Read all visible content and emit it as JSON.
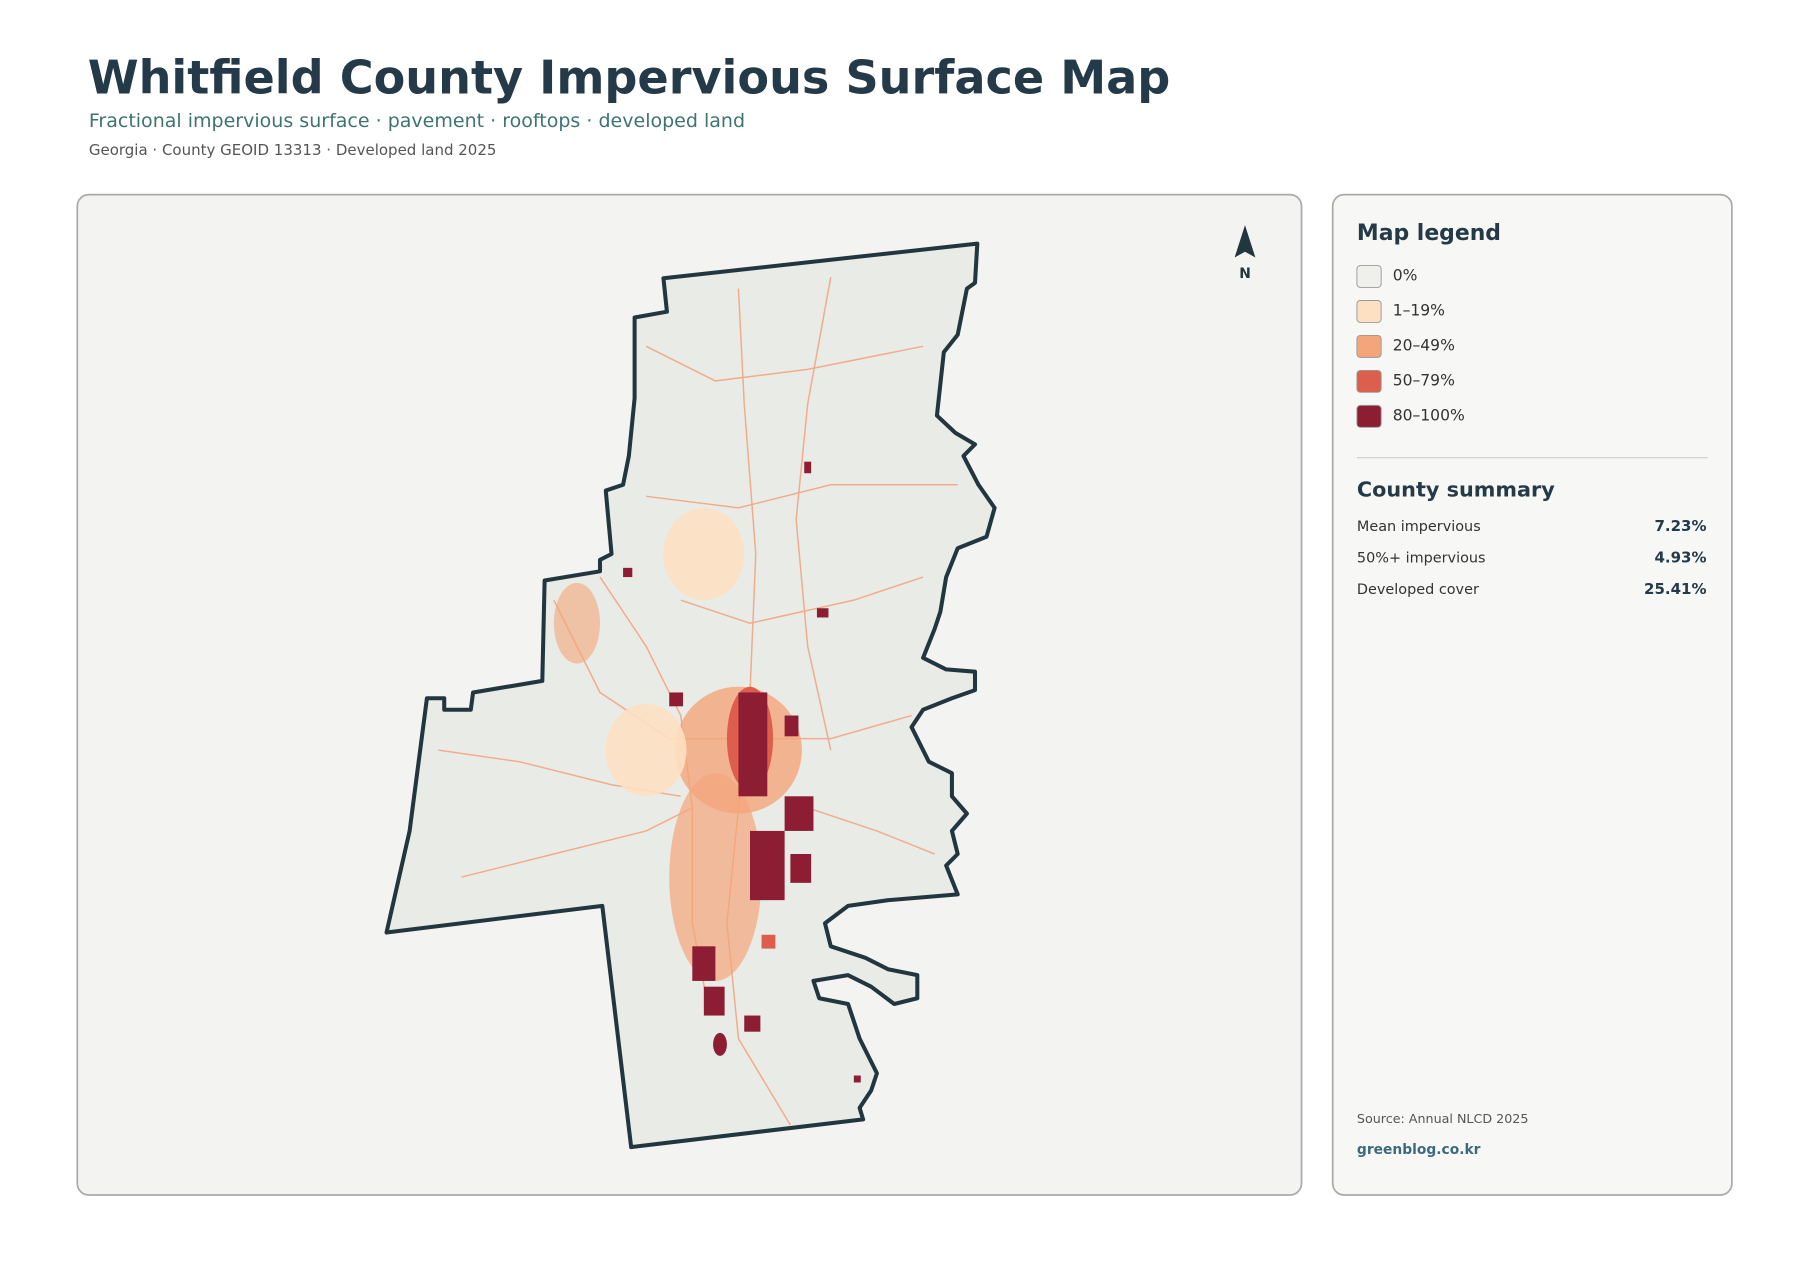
{
  "header": {
    "title": "Whitfield County Impervious Surface Map",
    "subtitle": "Fractional impervious surface · pavement · rooftops · developed land",
    "meta": "Georgia · County GEOID 13313 · Developed land 2025"
  },
  "map": {
    "north_label": "N"
  },
  "legend": {
    "title": "Map legend",
    "items": [
      {
        "label": "0%",
        "color": "#efefec"
      },
      {
        "label": "1–19%",
        "color": "#fde0c1"
      },
      {
        "label": "20–49%",
        "color": "#f4a57a"
      },
      {
        "label": "50–79%",
        "color": "#dd5e4d"
      },
      {
        "label": "80–100%",
        "color": "#8c1d33"
      }
    ]
  },
  "summary": {
    "title": "County summary",
    "rows": [
      [
        "Mean impervious",
        "7.23%"
      ],
      [
        "50%+ impervious",
        "4.93%"
      ],
      [
        "Developed cover",
        "25.41%"
      ]
    ]
  },
  "footer": {
    "source": "Source: Annual NLCD 2025",
    "site": "greenblog.co.kr"
  }
}
